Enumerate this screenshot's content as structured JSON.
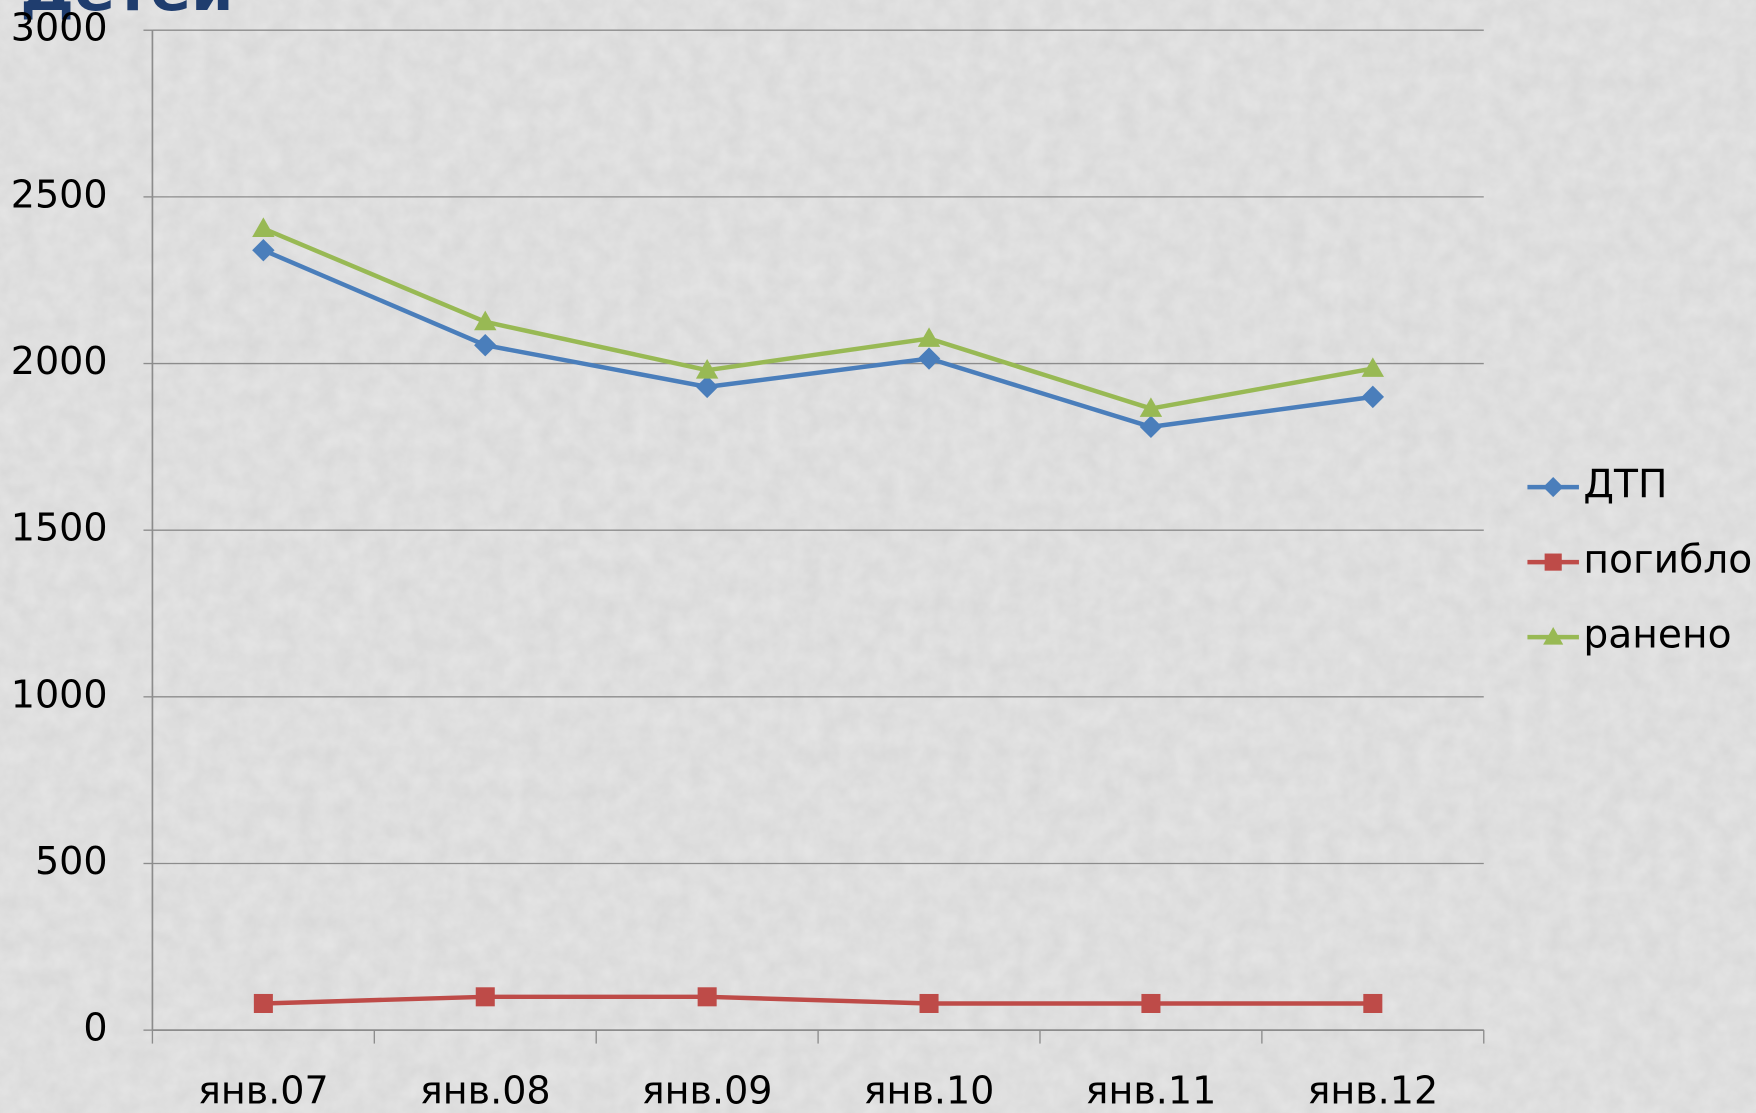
{
  "chart_data": {
    "type": "line",
    "title": "Детей",
    "categories": [
      "янв.07",
      "янв.08",
      "янв.09",
      "янв.10",
      "янв.11",
      "янв.12"
    ],
    "series": [
      {
        "name": "ДТП",
        "color": "#4a7ebb",
        "marker": "diamond",
        "values": [
          2340,
          2055,
          1930,
          2015,
          1810,
          1900
        ]
      },
      {
        "name": "погибло",
        "color": "#be4b48",
        "marker": "square",
        "values": [
          80,
          100,
          100,
          80,
          80,
          80
        ]
      },
      {
        "name": "ранено",
        "color": "#98b954",
        "marker": "triangle",
        "values": [
          2405,
          2125,
          1980,
          2075,
          1865,
          1985
        ]
      }
    ],
    "ylim": [
      0,
      3000
    ],
    "yticks": [
      0,
      500,
      1000,
      1500,
      2000,
      2500,
      3000
    ],
    "grid": true,
    "legend": "right"
  }
}
